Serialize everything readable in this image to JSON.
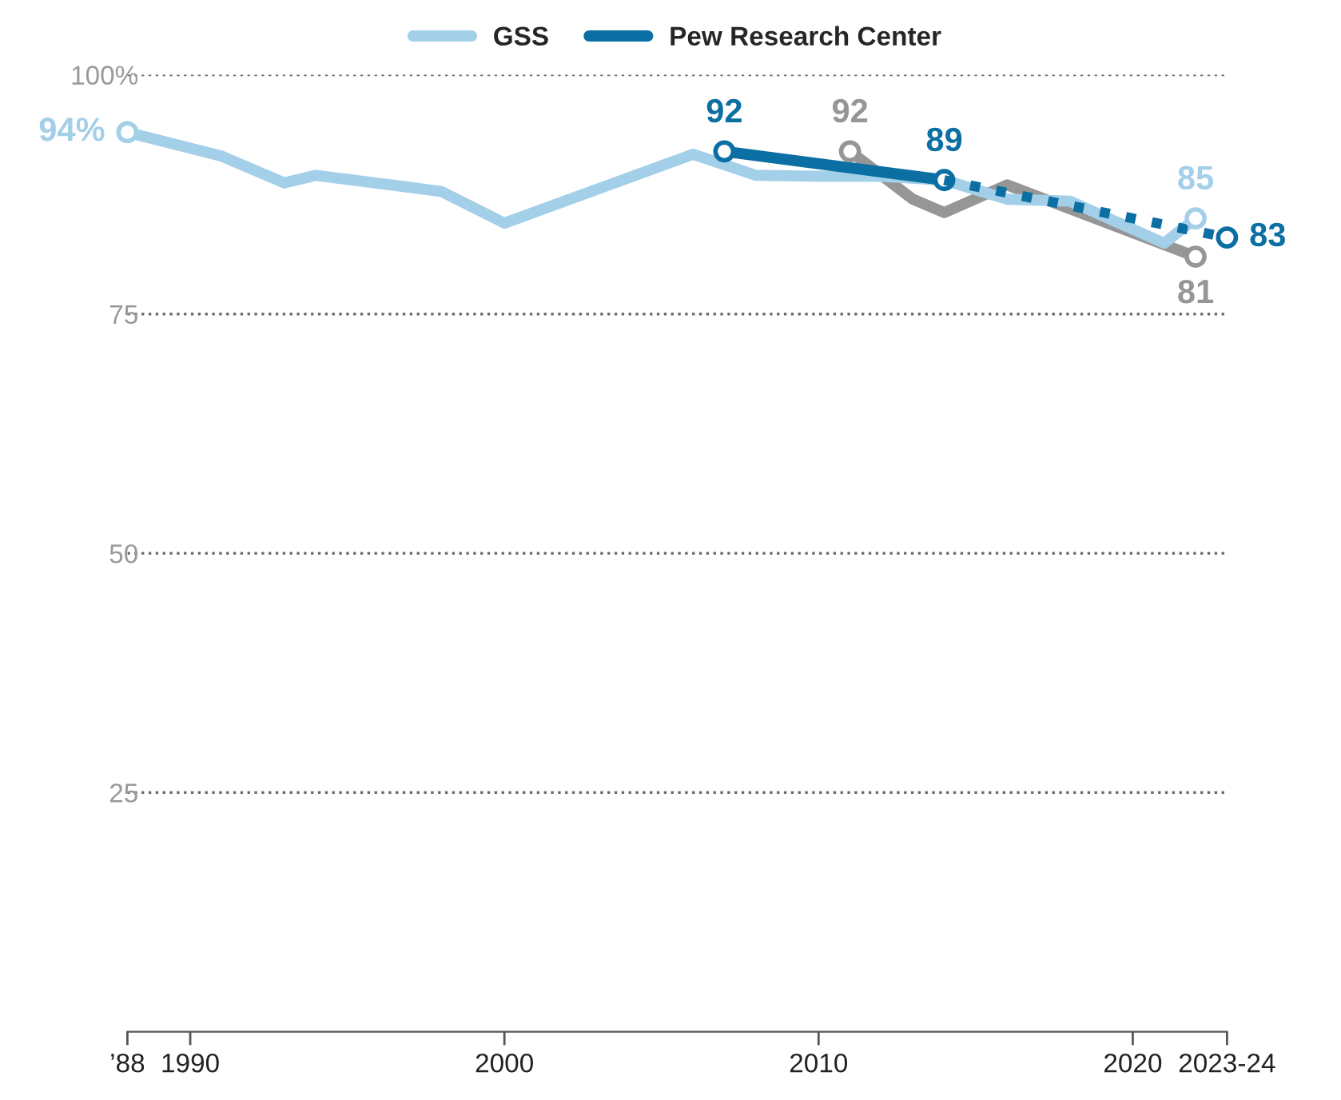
{
  "chart_data": {
    "type": "line",
    "series": [
      {
        "color": "#969696",
        "x": [
          2011,
          2013,
          2014,
          2016,
          2022
        ],
        "values": [
          92,
          87,
          85.6,
          88.5,
          81
        ],
        "value_labels": [
          "92",
          null,
          null,
          null,
          "81"
        ]
      },
      {
        "name": "GSS",
        "color": "#a3cfe9",
        "x": [
          1988,
          1991,
          1993,
          1994,
          1998,
          2000,
          2006,
          2008,
          2010,
          2012,
          2014,
          2016,
          2018,
          2021,
          2022
        ],
        "values": [
          94,
          91.5,
          88.7,
          89.5,
          87.8,
          84.5,
          91.7,
          89.5,
          89.4,
          89.4,
          89,
          87,
          86.8,
          82.4,
          85
        ],
        "value_labels": [
          "94%",
          null,
          null,
          null,
          null,
          null,
          null,
          null,
          null,
          null,
          null,
          null,
          null,
          null,
          "85"
        ]
      },
      {
        "name": "Pew Research Center",
        "color": "#0b6fa3",
        "marker": "circle",
        "x": [
          2007,
          2014
        ],
        "values": [
          92,
          89
        ],
        "value_labels": [
          "92",
          "89"
        ]
      },
      {
        "color": "#0b6fa3",
        "x": [
          2014,
          2023
        ],
        "values": [
          89,
          83
        ],
        "value_labels": [
          null,
          "83"
        ],
        "line_style": "dotted"
      }
    ],
    "xlim": [
      1988,
      2023
    ],
    "xticks": [
      {
        "value": 1988,
        "label": "’88"
      },
      1990,
      2000,
      2010,
      2020,
      {
        "value": 2023,
        "label": "2023-24"
      }
    ],
    "ylim": [
      0,
      100
    ],
    "yticks": [
      25,
      50,
      75,
      {
        "value": 100,
        "label": "100%"
      }
    ],
    "grid": "y",
    "legend": "top",
    "line_style": "solid"
  }
}
